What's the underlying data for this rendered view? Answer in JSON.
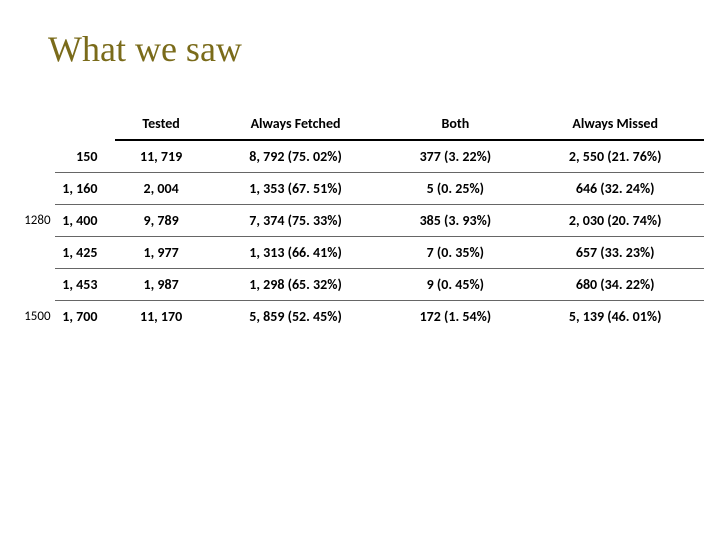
{
  "title": "What we saw",
  "title_color": "#7a6b1a",
  "columns": [
    "Tested",
    "Always Fetched",
    "Both",
    "Always Missed"
  ],
  "sideLabels": {
    "2": "1280",
    "5": "1500"
  },
  "rows": [
    {
      "c0": "150",
      "c1": "11, 719",
      "c2": "8, 792 (75. 02%)",
      "c3": "377 (3. 22%)",
      "c4": "2, 550 (21. 76%)"
    },
    {
      "c0": "1, 160",
      "c1": "2, 004",
      "c2": "1, 353 (67. 51%)",
      "c3": "5 (0. 25%)",
      "c4": "646 (32. 24%)"
    },
    {
      "c0": "1, 400",
      "c1": "9, 789",
      "c2": "7, 374 (75. 33%)",
      "c3": "385 (3. 93%)",
      "c4": "2, 030 (20. 74%)"
    },
    {
      "c0": "1, 425",
      "c1": "1, 977",
      "c2": "1, 313 (66. 41%)",
      "c3": "7 (0. 35%)",
      "c4": "657 (33. 23%)"
    },
    {
      "c0": "1, 453",
      "c1": "1, 987",
      "c2": "1, 298 (65. 32%)",
      "c3": "9 (0. 45%)",
      "c4": "680 (34. 22%)"
    },
    {
      "c0": "1, 700",
      "c1": "11, 170",
      "c2": "5, 859 (52. 45%)",
      "c3": "172 (1. 54%)",
      "c4": "5, 139 (46. 01%)"
    }
  ],
  "styling": {
    "background_color": "#ffffff",
    "header_border_color": "#000000",
    "row_border_color": "#666666",
    "title_fontsize": 36,
    "cell_fontsize": 14,
    "cell_fontweight": 700,
    "font_family": "Calibri, Arial, sans-serif",
    "title_font_family": "Georgia, Times New Roman, serif"
  }
}
